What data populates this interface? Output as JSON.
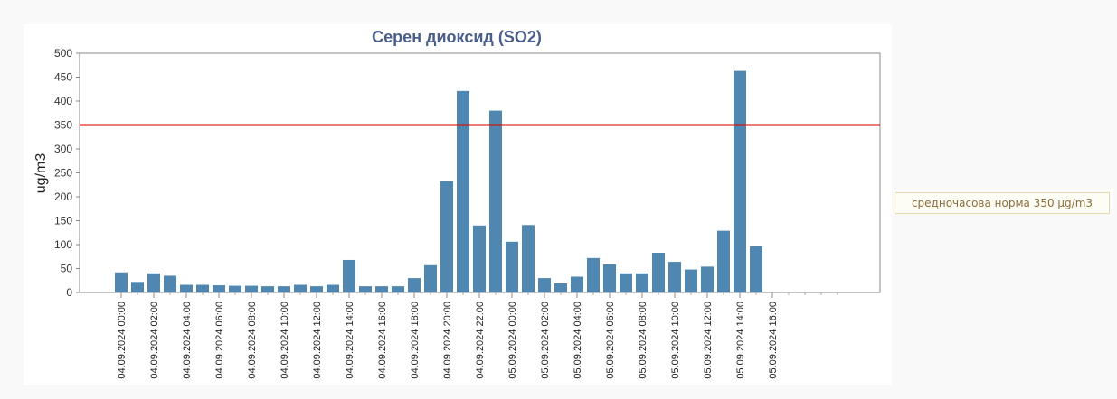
{
  "chart_data": {
    "type": "bar",
    "title": "Серен диоксид (SO2)",
    "ylabel": "ug/m3",
    "xlabel": "",
    "ylim": [
      0,
      500
    ],
    "yticks": [
      0,
      50,
      100,
      150,
      200,
      250,
      300,
      350,
      400,
      450,
      500
    ],
    "grid": false,
    "bar_color": "#4f87b0",
    "threshold": {
      "value": 350,
      "color": "#dd0000",
      "label": "средночасова норма 350 µg/m3"
    },
    "x_tick_labels": [
      "04.09.2024 00:00",
      "04.09.2024 02:00",
      "04.09.2024 04:00",
      "04.09.2024 06:00",
      "04.09.2024 08:00",
      "04.09.2024 10:00",
      "04.09.2024 12:00",
      "04.09.2024 14:00",
      "04.09.2024 16:00",
      "04.09.2024 18:00",
      "04.09.2024 20:00",
      "04.09.2024 22:00",
      "05.09.2024 00:00",
      "05.09.2024 02:00",
      "05.09.2024 04:00",
      "05.09.2024 06:00",
      "05.09.2024 08:00",
      "05.09.2024 10:00",
      "05.09.2024 12:00",
      "05.09.2024 14:00",
      "05.09.2024 16:00"
    ],
    "values": [
      42,
      22,
      40,
      35,
      16,
      16,
      15,
      14,
      14,
      13,
      13,
      16,
      13,
      16,
      68,
      13,
      13,
      13,
      30,
      57,
      233,
      421,
      140,
      380,
      106,
      141,
      30,
      19,
      33,
      72,
      59,
      40,
      40,
      83,
      64,
      48,
      54,
      129,
      463,
      97
    ]
  }
}
